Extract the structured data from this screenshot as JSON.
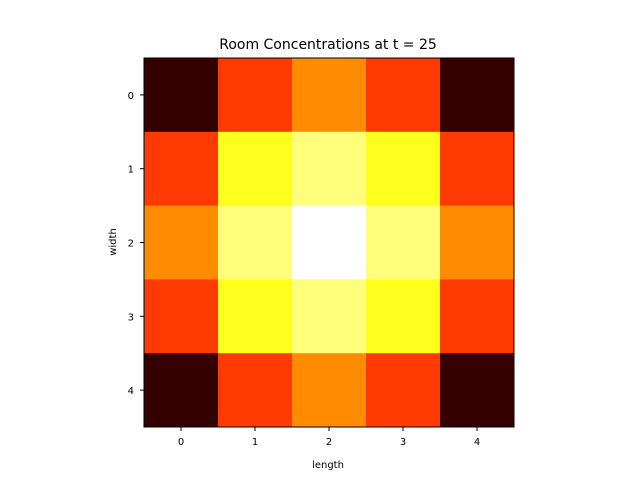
{
  "chart_data": {
    "type": "heatmap",
    "title": "Room Concentrations at t = 25",
    "xlabel": "length",
    "ylabel": "width",
    "x_ticks": [
      "0",
      "1",
      "2",
      "3",
      "4"
    ],
    "y_ticks": [
      "0",
      "1",
      "2",
      "3",
      "4"
    ],
    "colormap": "hot",
    "grid": false,
    "values": [
      [
        0.04,
        0.44,
        0.56,
        0.44,
        0.04
      ],
      [
        0.44,
        0.76,
        0.86,
        0.76,
        0.44
      ],
      [
        0.56,
        0.86,
        1.0,
        0.86,
        0.56
      ],
      [
        0.44,
        0.76,
        0.86,
        0.76,
        0.44
      ],
      [
        0.04,
        0.44,
        0.56,
        0.44,
        0.04
      ]
    ],
    "vmin": 0,
    "vmax": 1
  }
}
